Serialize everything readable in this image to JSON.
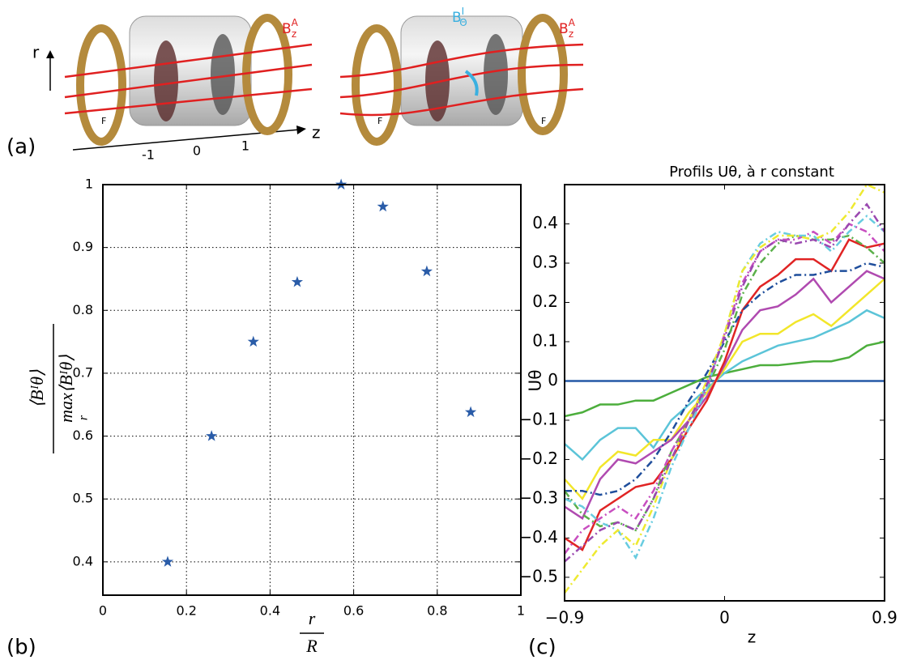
{
  "panel_labels": [
    "(a)",
    "(b)",
    "(c)"
  ],
  "diagram": {
    "r_label": "r",
    "z_label": "z",
    "z_ticks": [
      -1,
      0,
      1
    ],
    "force_label": "F",
    "applied_field": {
      "base": "B",
      "sup": "A",
      "sub": "z"
    },
    "induced_field": {
      "base": "B",
      "sup": "I",
      "sub": "Θ"
    }
  },
  "chart_data": [
    {
      "type": "scatter",
      "marker": "star",
      "color": "#2a5ca8",
      "x": [
        0.155,
        0.26,
        0.36,
        0.465,
        0.57,
        0.67,
        0.775,
        0.88
      ],
      "values": [
        0.4,
        0.6,
        0.75,
        0.845,
        1.0,
        0.965,
        0.862,
        0.638
      ],
      "xlim": [
        0,
        1
      ],
      "xticks": [
        0,
        0.2,
        0.4,
        0.6,
        0.8,
        1
      ],
      "ylim": [
        0.347,
        1
      ],
      "yticks": [
        0.4,
        0.5,
        0.6,
        0.7,
        0.8,
        0.9,
        1
      ],
      "grid": true,
      "xlabel": {
        "numerator": "r",
        "denominator": "R"
      },
      "ylabel": {
        "numerator": "⟨Bᴵθ⟩",
        "denominator": "max⟨Bᴵθ⟩",
        "denominator_sub": "r"
      }
    },
    {
      "type": "line",
      "title": "Profils Uθ, à r constant",
      "xlabel": "z",
      "ylabel": "Uθ",
      "x": [
        -0.9,
        -0.8,
        -0.7,
        -0.6,
        -0.5,
        -0.4,
        -0.3,
        -0.2,
        -0.1,
        0,
        0.1,
        0.2,
        0.3,
        0.4,
        0.5,
        0.6,
        0.7,
        0.8,
        0.9
      ],
      "xlim": [
        -0.9,
        0.9
      ],
      "xticks": [
        {
          "value": -0.9,
          "label": "−0.9"
        },
        0,
        0.9
      ],
      "ylim": [
        -0.56,
        0.5
      ],
      "yticks": [
        {
          "value": -0.5,
          "label": "−0.5"
        },
        {
          "value": -0.4,
          "label": "−0.4"
        },
        {
          "value": -0.3,
          "label": "−0.3"
        },
        {
          "value": -0.2,
          "label": "−0.2"
        },
        {
          "value": -0.1,
          "label": "−0.1"
        },
        0,
        0.1,
        0.2,
        0.3,
        0.4
      ],
      "grid": false,
      "series": [
        {
          "color": "#2458a6",
          "dash": "solid",
          "values": [
            0,
            0,
            0,
            0,
            0,
            0,
            0,
            0,
            0,
            0,
            0,
            0,
            0,
            0,
            0,
            0,
            0,
            0,
            0
          ]
        },
        {
          "color": "#4cae3c",
          "dash": "solid",
          "values": [
            -0.09,
            -0.08,
            -0.06,
            -0.06,
            -0.05,
            -0.05,
            -0.03,
            -0.01,
            0.01,
            0.02,
            0.03,
            0.04,
            0.04,
            0.045,
            0.05,
            0.05,
            0.06,
            0.09,
            0.1
          ]
        },
        {
          "color": "#5bc4d8",
          "dash": "solid",
          "values": [
            -0.16,
            -0.2,
            -0.15,
            -0.12,
            -0.12,
            -0.17,
            -0.1,
            -0.06,
            -0.02,
            0.02,
            0.05,
            0.07,
            0.09,
            0.1,
            0.11,
            0.13,
            0.15,
            0.18,
            0.16
          ]
        },
        {
          "color": "#f2e62a",
          "dash": "solid",
          "values": [
            -0.25,
            -0.3,
            -0.22,
            -0.18,
            -0.19,
            -0.15,
            -0.15,
            -0.08,
            -0.03,
            0.03,
            0.1,
            0.12,
            0.12,
            0.15,
            0.17,
            0.14,
            0.18,
            0.22,
            0.26
          ]
        },
        {
          "color": "#b04ab0",
          "dash": "solid",
          "values": [
            -0.32,
            -0.35,
            -0.25,
            -0.2,
            -0.21,
            -0.18,
            -0.15,
            -0.1,
            -0.04,
            0.04,
            0.13,
            0.18,
            0.19,
            0.22,
            0.26,
            0.2,
            0.24,
            0.28,
            0.26
          ]
        },
        {
          "color": "#e02424",
          "dash": "solid",
          "values": [
            -0.4,
            -0.43,
            -0.33,
            -0.3,
            -0.27,
            -0.26,
            -0.2,
            -0.12,
            -0.05,
            0.05,
            0.18,
            0.24,
            0.27,
            0.31,
            0.31,
            0.28,
            0.36,
            0.34,
            0.35
          ]
        },
        {
          "color": "#1f4e9c",
          "dash": "dashdot",
          "values": [
            -0.28,
            -0.28,
            -0.29,
            -0.28,
            -0.25,
            -0.2,
            -0.13,
            -0.05,
            0.02,
            0.1,
            0.18,
            0.22,
            0.25,
            0.27,
            0.27,
            0.28,
            0.28,
            0.3,
            0.29
          ]
        },
        {
          "color": "#5bb04a",
          "dash": "dashdot",
          "values": [
            -0.28,
            -0.34,
            -0.37,
            -0.36,
            -0.38,
            -0.3,
            -0.18,
            -0.1,
            -0.02,
            0.08,
            0.22,
            0.3,
            0.35,
            0.37,
            0.36,
            0.36,
            0.37,
            0.34,
            0.3
          ]
        },
        {
          "color": "#c84ec0",
          "dash": "dashdot",
          "values": [
            -0.44,
            -0.38,
            -0.35,
            -0.32,
            -0.35,
            -0.28,
            -0.18,
            -0.1,
            -0.02,
            0.12,
            0.25,
            0.33,
            0.36,
            0.36,
            0.38,
            0.35,
            0.4,
            0.38,
            0.33
          ]
        },
        {
          "color": "#68cce0",
          "dash": "dashdot",
          "values": [
            -0.3,
            -0.32,
            -0.36,
            -0.38,
            -0.45,
            -0.35,
            -0.22,
            -0.12,
            -0.02,
            0.12,
            0.28,
            0.35,
            0.38,
            0.37,
            0.37,
            0.33,
            0.38,
            0.42,
            0.38
          ]
        },
        {
          "color": "#eeea30",
          "dash": "dashdot",
          "values": [
            -0.54,
            -0.48,
            -0.42,
            -0.38,
            -0.42,
            -0.32,
            -0.2,
            -0.1,
            0.0,
            0.12,
            0.28,
            0.34,
            0.37,
            0.37,
            0.36,
            0.38,
            0.43,
            0.5,
            0.48
          ]
        },
        {
          "color": "#9a48b0",
          "dash": "dashdot",
          "values": [
            -0.46,
            -0.42,
            -0.38,
            -0.36,
            -0.38,
            -0.3,
            -0.2,
            -0.1,
            -0.01,
            0.11,
            0.24,
            0.33,
            0.36,
            0.35,
            0.36,
            0.34,
            0.4,
            0.45,
            0.38
          ]
        }
      ]
    }
  ]
}
